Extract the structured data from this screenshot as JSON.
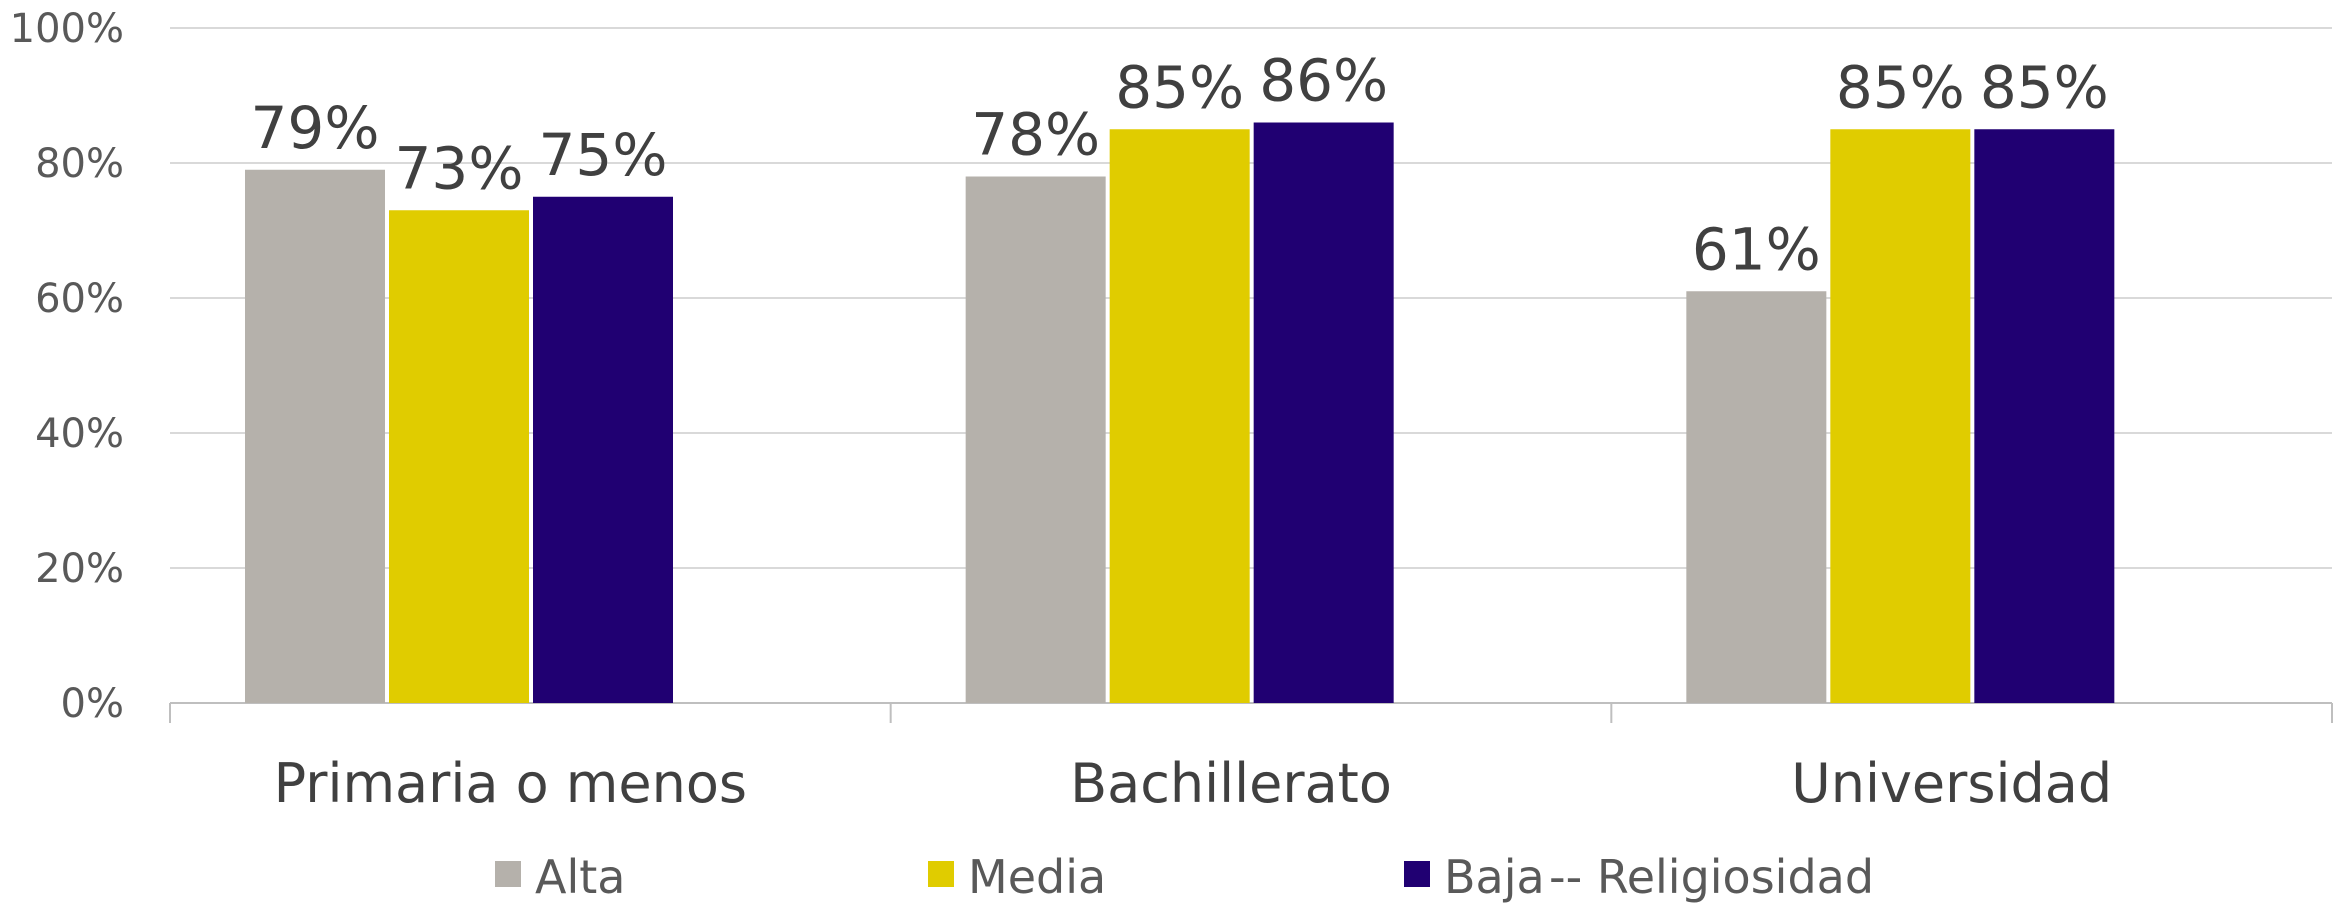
{
  "chart_data": {
    "type": "bar",
    "categories": [
      "Primaria  o  menos",
      "Bachillerato",
      "Universidad"
    ],
    "series": [
      {
        "name": "Alta",
        "values": [
          79,
          78,
          61
        ],
        "color": "#b5b1ab"
      },
      {
        "name": "Media",
        "values": [
          73,
          85,
          85
        ],
        "color": "#e0cc00"
      },
      {
        "name": "Baja",
        "values": [
          75,
          86,
          85
        ],
        "color": "#200072"
      }
    ],
    "data_labels": [
      [
        "79%",
        "78%",
        "61%"
      ],
      [
        "73%",
        "85%",
        "85%"
      ],
      [
        "75%",
        "86%",
        "85%"
      ]
    ],
    "y_ticks": [
      "0%",
      "20%",
      "40%",
      "60%",
      "80%",
      "100%"
    ],
    "ylim": [
      0,
      100
    ],
    "grid": true,
    "legend_position": "bottom",
    "legend_suffix": "--  Religiosidad"
  }
}
